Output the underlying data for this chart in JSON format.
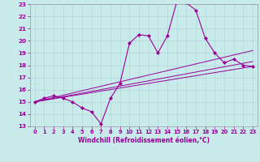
{
  "title": "",
  "xlabel": "Windchill (Refroidissement éolien,°C)",
  "ylabel": "",
  "xlim": [
    -0.5,
    23.5
  ],
  "ylim": [
    13,
    23
  ],
  "yticks": [
    13,
    14,
    15,
    16,
    17,
    18,
    19,
    20,
    21,
    22,
    23
  ],
  "xticks": [
    0,
    1,
    2,
    3,
    4,
    5,
    6,
    7,
    8,
    9,
    10,
    11,
    12,
    13,
    14,
    15,
    16,
    17,
    18,
    19,
    20,
    21,
    22,
    23
  ],
  "bg_color": "#c8eaea",
  "grid_color": "#b0d8d8",
  "line_color": "#990099",
  "series_main": {
    "x": [
      0,
      1,
      2,
      3,
      4,
      5,
      6,
      7,
      8,
      9,
      10,
      11,
      12,
      13,
      14,
      15,
      16,
      17,
      18,
      19,
      20,
      21,
      22,
      23
    ],
    "y": [
      15.0,
      15.3,
      15.5,
      15.3,
      15.0,
      14.5,
      14.2,
      13.2,
      15.3,
      16.5,
      19.8,
      20.5,
      20.4,
      19.0,
      20.4,
      23.2,
      23.1,
      22.5,
      20.2,
      19.0,
      18.2,
      18.5,
      18.0,
      17.9
    ]
  },
  "series_lines": [
    {
      "x": [
        0,
        23
      ],
      "y": [
        15.0,
        17.9
      ]
    },
    {
      "x": [
        0,
        23
      ],
      "y": [
        15.0,
        18.3
      ]
    },
    {
      "x": [
        0,
        23
      ],
      "y": [
        15.0,
        19.2
      ]
    }
  ]
}
